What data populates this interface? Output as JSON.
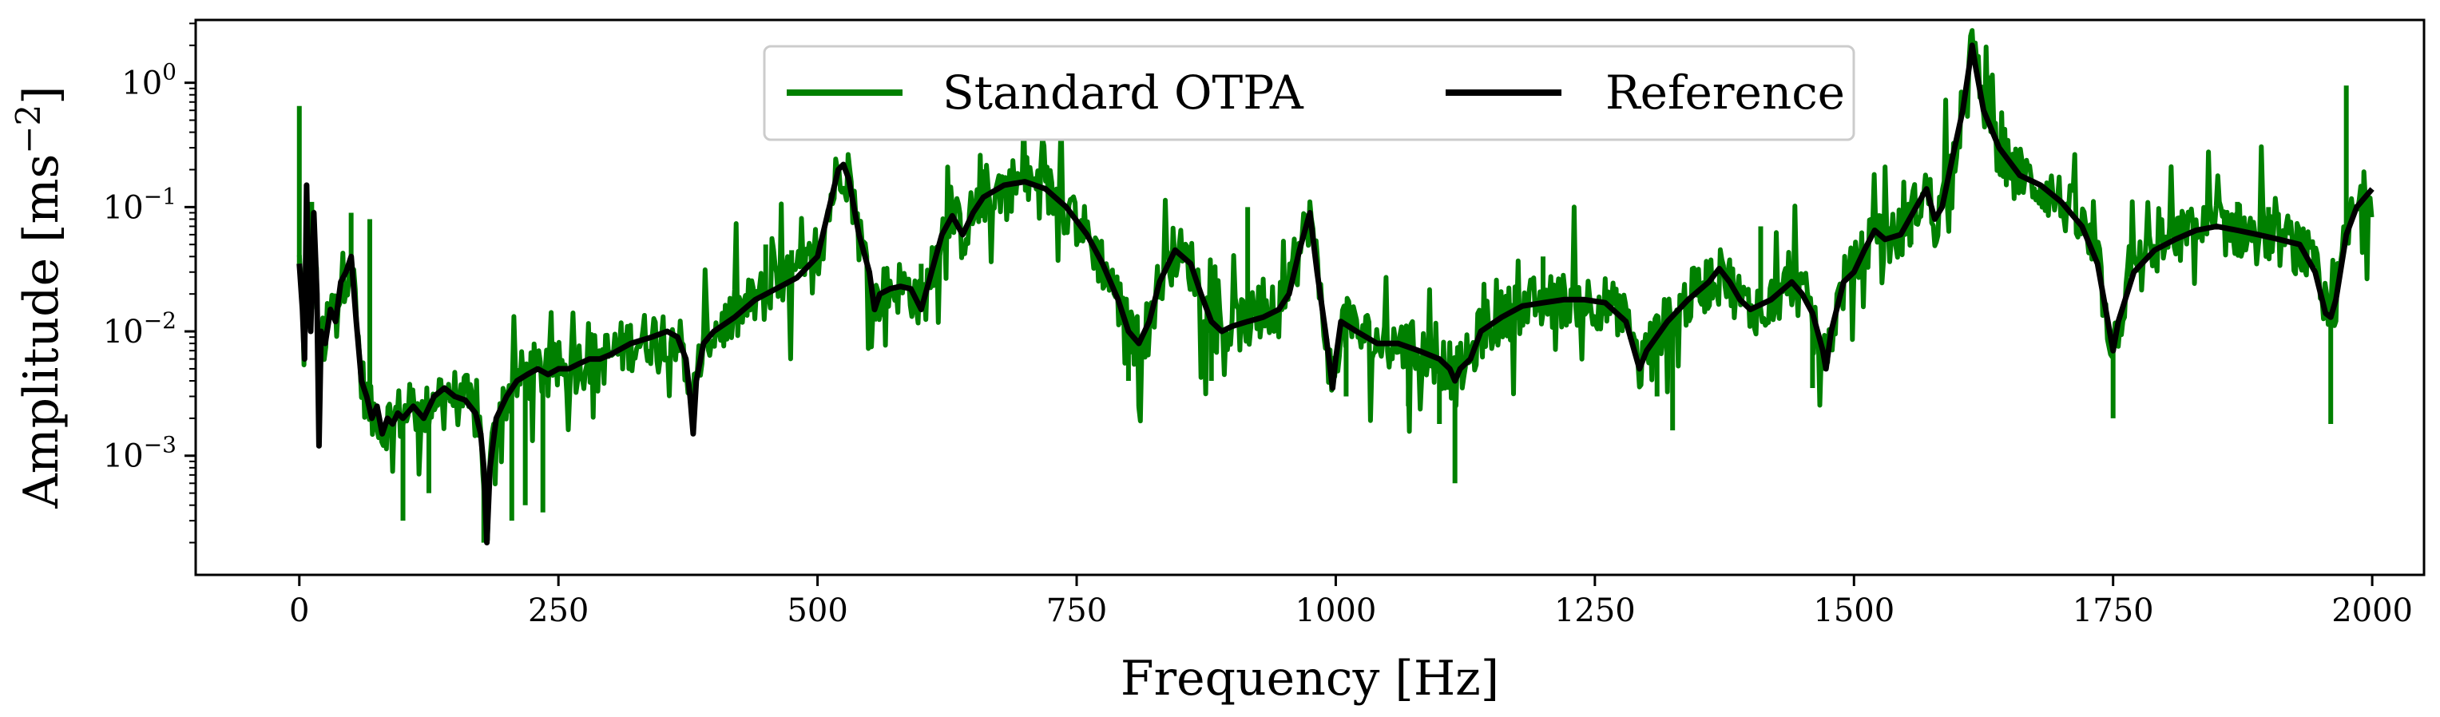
{
  "chart_data": {
    "type": "line",
    "title": "",
    "xlabel": "Frequency [Hz]",
    "ylabel_main": "Amplitude [ms",
    "ylabel_sup": "−2",
    "ylabel_close": "]",
    "xlim": [
      -100,
      2050
    ],
    "ylim": [
      0.00011,
      3.2
    ],
    "yscale": "log",
    "grid": false,
    "legend_position": "top-center",
    "x_ticks": [
      {
        "value": 0,
        "label": "0"
      },
      {
        "value": 250,
        "label": "250"
      },
      {
        "value": 500,
        "label": "500"
      },
      {
        "value": 750,
        "label": "750"
      },
      {
        "value": 1000,
        "label": "1000"
      },
      {
        "value": 1250,
        "label": "1250"
      },
      {
        "value": 1500,
        "label": "1500"
      },
      {
        "value": 1750,
        "label": "1750"
      },
      {
        "value": 2000,
        "label": "2000"
      }
    ],
    "y_ticks": [
      {
        "value": 0.001,
        "base": "10",
        "exp": "−3"
      },
      {
        "value": 0.01,
        "base": "10",
        "exp": "−2"
      },
      {
        "value": 0.1,
        "base": "10",
        "exp": "−1"
      },
      {
        "value": 1,
        "base": "10",
        "exp": "0"
      }
    ],
    "series": [
      {
        "name": "Reference",
        "color": "#000000",
        "points": [
          [
            0,
            0.035
          ],
          [
            3,
            0.015
          ],
          [
            5,
            0.006
          ],
          [
            7,
            0.15
          ],
          [
            9,
            0.02
          ],
          [
            11,
            0.01
          ],
          [
            14,
            0.09
          ],
          [
            17,
            0.02
          ],
          [
            19,
            0.0012
          ],
          [
            21,
            0.01
          ],
          [
            25,
            0.008
          ],
          [
            30,
            0.015
          ],
          [
            35,
            0.012
          ],
          [
            40,
            0.025
          ],
          [
            45,
            0.03
          ],
          [
            50,
            0.04
          ],
          [
            55,
            0.012
          ],
          [
            60,
            0.004
          ],
          [
            65,
            0.003
          ],
          [
            70,
            0.002
          ],
          [
            75,
            0.0025
          ],
          [
            80,
            0.0015
          ],
          [
            85,
            0.002
          ],
          [
            90,
            0.0018
          ],
          [
            95,
            0.0022
          ],
          [
            100,
            0.002
          ],
          [
            110,
            0.0025
          ],
          [
            120,
            0.002
          ],
          [
            130,
            0.003
          ],
          [
            140,
            0.0035
          ],
          [
            150,
            0.003
          ],
          [
            160,
            0.0028
          ],
          [
            170,
            0.0022
          ],
          [
            175,
            0.0015
          ],
          [
            178,
            0.0008
          ],
          [
            181,
            0.0002
          ],
          [
            184,
            0.0008
          ],
          [
            190,
            0.002
          ],
          [
            200,
            0.003
          ],
          [
            210,
            0.004
          ],
          [
            220,
            0.0045
          ],
          [
            230,
            0.005
          ],
          [
            240,
            0.0045
          ],
          [
            250,
            0.005
          ],
          [
            260,
            0.005
          ],
          [
            270,
            0.0055
          ],
          [
            280,
            0.006
          ],
          [
            290,
            0.006
          ],
          [
            300,
            0.0065
          ],
          [
            320,
            0.008
          ],
          [
            340,
            0.009
          ],
          [
            355,
            0.01
          ],
          [
            365,
            0.009
          ],
          [
            373,
            0.006
          ],
          [
            377,
            0.003
          ],
          [
            380,
            0.0015
          ],
          [
            383,
            0.004
          ],
          [
            390,
            0.008
          ],
          [
            400,
            0.01
          ],
          [
            420,
            0.013
          ],
          [
            440,
            0.018
          ],
          [
            460,
            0.022
          ],
          [
            480,
            0.027
          ],
          [
            500,
            0.04
          ],
          [
            510,
            0.09
          ],
          [
            520,
            0.2
          ],
          [
            525,
            0.22
          ],
          [
            530,
            0.17
          ],
          [
            540,
            0.06
          ],
          [
            550,
            0.03
          ],
          [
            555,
            0.015
          ],
          [
            560,
            0.02
          ],
          [
            570,
            0.022
          ],
          [
            580,
            0.023
          ],
          [
            590,
            0.022
          ],
          [
            600,
            0.015
          ],
          [
            610,
            0.03
          ],
          [
            620,
            0.06
          ],
          [
            630,
            0.085
          ],
          [
            640,
            0.06
          ],
          [
            650,
            0.09
          ],
          [
            660,
            0.12
          ],
          [
            680,
            0.15
          ],
          [
            700,
            0.16
          ],
          [
            720,
            0.14
          ],
          [
            740,
            0.1
          ],
          [
            760,
            0.06
          ],
          [
            775,
            0.035
          ],
          [
            790,
            0.018
          ],
          [
            800,
            0.01
          ],
          [
            810,
            0.008
          ],
          [
            820,
            0.012
          ],
          [
            830,
            0.025
          ],
          [
            845,
            0.045
          ],
          [
            860,
            0.035
          ],
          [
            870,
            0.02
          ],
          [
            880,
            0.012
          ],
          [
            890,
            0.01
          ],
          [
            900,
            0.011
          ],
          [
            915,
            0.012
          ],
          [
            930,
            0.013
          ],
          [
            945,
            0.015
          ],
          [
            955,
            0.02
          ],
          [
            965,
            0.045
          ],
          [
            975,
            0.09
          ],
          [
            982,
            0.03
          ],
          [
            990,
            0.01
          ],
          [
            997,
            0.0035
          ],
          [
            1000,
            0.006
          ],
          [
            1005,
            0.012
          ],
          [
            1020,
            0.01
          ],
          [
            1040,
            0.008
          ],
          [
            1060,
            0.008
          ],
          [
            1080,
            0.007
          ],
          [
            1100,
            0.006
          ],
          [
            1110,
            0.005
          ],
          [
            1115,
            0.004
          ],
          [
            1120,
            0.005
          ],
          [
            1130,
            0.006
          ],
          [
            1140,
            0.01
          ],
          [
            1160,
            0.013
          ],
          [
            1180,
            0.016
          ],
          [
            1200,
            0.017
          ],
          [
            1220,
            0.018
          ],
          [
            1240,
            0.018
          ],
          [
            1260,
            0.017
          ],
          [
            1280,
            0.012
          ],
          [
            1293,
            0.005
          ],
          [
            1300,
            0.007
          ],
          [
            1320,
            0.012
          ],
          [
            1340,
            0.018
          ],
          [
            1360,
            0.025
          ],
          [
            1370,
            0.032
          ],
          [
            1380,
            0.025
          ],
          [
            1390,
            0.018
          ],
          [
            1400,
            0.015
          ],
          [
            1420,
            0.018
          ],
          [
            1440,
            0.025
          ],
          [
            1450,
            0.02
          ],
          [
            1460,
            0.014
          ],
          [
            1470,
            0.007
          ],
          [
            1473,
            0.005
          ],
          [
            1478,
            0.01
          ],
          [
            1490,
            0.025
          ],
          [
            1500,
            0.03
          ],
          [
            1510,
            0.045
          ],
          [
            1520,
            0.065
          ],
          [
            1530,
            0.055
          ],
          [
            1545,
            0.06
          ],
          [
            1560,
            0.1
          ],
          [
            1570,
            0.14
          ],
          [
            1578,
            0.08
          ],
          [
            1585,
            0.1
          ],
          [
            1595,
            0.25
          ],
          [
            1605,
            0.6
          ],
          [
            1612,
            1.5
          ],
          [
            1614,
            2.0
          ],
          [
            1617,
            1.4
          ],
          [
            1625,
            0.6
          ],
          [
            1640,
            0.3
          ],
          [
            1660,
            0.18
          ],
          [
            1680,
            0.15
          ],
          [
            1700,
            0.11
          ],
          [
            1720,
            0.07
          ],
          [
            1735,
            0.035
          ],
          [
            1745,
            0.012
          ],
          [
            1750,
            0.007
          ],
          [
            1755,
            0.012
          ],
          [
            1770,
            0.03
          ],
          [
            1790,
            0.045
          ],
          [
            1810,
            0.055
          ],
          [
            1830,
            0.065
          ],
          [
            1850,
            0.07
          ],
          [
            1870,
            0.065
          ],
          [
            1890,
            0.06
          ],
          [
            1910,
            0.055
          ],
          [
            1930,
            0.05
          ],
          [
            1945,
            0.03
          ],
          [
            1955,
            0.014
          ],
          [
            1960,
            0.013
          ],
          [
            1965,
            0.018
          ],
          [
            1975,
            0.06
          ],
          [
            1985,
            0.1
          ],
          [
            2000,
            0.14
          ]
        ]
      },
      {
        "name": "Standard OTPA",
        "color": "#008000",
        "spikes": [
          [
            0,
            0.65
          ],
          [
            12,
            0.11
          ],
          [
            50,
            0.09
          ],
          [
            68,
            0.08
          ],
          [
            100,
            0.0003
          ],
          [
            125,
            0.0005
          ],
          [
            178,
            0.0002
          ],
          [
            205,
            0.0003
          ],
          [
            218,
            0.0004
          ],
          [
            235,
            0.00035
          ],
          [
            450,
            0.05
          ],
          [
            475,
            0.045
          ],
          [
            555,
            0.012
          ],
          [
            600,
            0.035
          ],
          [
            700,
            0.17
          ],
          [
            800,
            0.004
          ],
          [
            810,
            0.0025
          ],
          [
            880,
            0.004
          ],
          [
            915,
            0.1
          ],
          [
            950,
            0.03
          ],
          [
            1010,
            0.003
          ],
          [
            1070,
            0.0025
          ],
          [
            1100,
            0.0018
          ],
          [
            1115,
            0.0006
          ],
          [
            1200,
            0.04
          ],
          [
            1310,
            0.003
          ],
          [
            1325,
            0.0016
          ],
          [
            1410,
            0.07
          ],
          [
            1460,
            0.0035
          ],
          [
            1520,
            0.11
          ],
          [
            1555,
            0.05
          ],
          [
            1740,
            0.02
          ],
          [
            1750,
            0.002
          ],
          [
            1800,
            0.06
          ],
          [
            1870,
            0.11
          ],
          [
            1900,
            0.1
          ],
          [
            1960,
            0.0018
          ],
          [
            1975,
            0.95
          ]
        ]
      }
    ]
  }
}
